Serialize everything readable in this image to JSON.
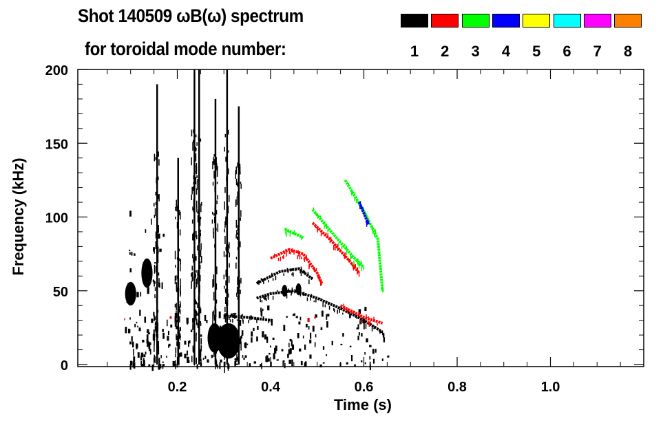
{
  "chart_data": {
    "type": "heatmap",
    "title_line1": "Shot 140509 ωB(ω) spectrum",
    "title_line2": "for toroidal mode number:",
    "xlabel": "Time (s)",
    "ylabel": "Frequency (kHz)",
    "xlim": [
      0,
      1.2
    ],
    "ylim": [
      0,
      200
    ],
    "xticks": [
      0.2,
      0.4,
      0.6,
      0.8,
      1.0
    ],
    "xtick_labels": [
      "0.2",
      "0.4",
      "0.6",
      "0.8",
      "1.0"
    ],
    "yticks": [
      0,
      50,
      100,
      150,
      200
    ],
    "ytick_labels": [
      "0",
      "50",
      "100",
      "150",
      "200"
    ],
    "legend": {
      "placement": "top-right",
      "modes": [
        {
          "n": "1",
          "color": "#000000"
        },
        {
          "n": "2",
          "color": "#ff0000"
        },
        {
          "n": "3",
          "color": "#00ff00"
        },
        {
          "n": "4",
          "color": "#0000ff"
        },
        {
          "n": "5",
          "color": "#ffff00"
        },
        {
          "n": "6",
          "color": "#00ffff"
        },
        {
          "n": "7",
          "color": "#ff00ff"
        },
        {
          "n": "8",
          "color": "#ff8000"
        }
      ]
    },
    "data_time_range": [
      0.05,
      0.65
    ],
    "mode_traces": [
      {
        "n": 1,
        "points": [
          [
            0.37,
            45
          ],
          [
            0.4,
            48
          ],
          [
            0.45,
            50
          ],
          [
            0.5,
            45
          ],
          [
            0.55,
            38
          ],
          [
            0.6,
            30
          ],
          [
            0.64,
            22
          ]
        ]
      },
      {
        "n": 1,
        "points": [
          [
            0.37,
            55
          ],
          [
            0.42,
            63
          ],
          [
            0.46,
            65
          ],
          [
            0.49,
            58
          ]
        ]
      },
      {
        "n": 1,
        "points": [
          [
            0.3,
            33
          ],
          [
            0.35,
            32
          ],
          [
            0.4,
            30
          ]
        ]
      },
      {
        "n": 2,
        "points": [
          [
            0.4,
            72
          ],
          [
            0.44,
            78
          ],
          [
            0.47,
            75
          ],
          [
            0.5,
            62
          ],
          [
            0.51,
            55
          ]
        ]
      },
      {
        "n": 2,
        "points": [
          [
            0.49,
            96
          ],
          [
            0.53,
            84
          ],
          [
            0.57,
            70
          ],
          [
            0.59,
            62
          ]
        ]
      },
      {
        "n": 2,
        "points": [
          [
            0.55,
            40
          ],
          [
            0.6,
            32
          ],
          [
            0.64,
            28
          ]
        ]
      },
      {
        "n": 3,
        "points": [
          [
            0.43,
            92
          ],
          [
            0.47,
            86
          ]
        ]
      },
      {
        "n": 3,
        "points": [
          [
            0.49,
            105
          ],
          [
            0.53,
            90
          ],
          [
            0.58,
            72
          ],
          [
            0.6,
            66
          ]
        ]
      },
      {
        "n": 3,
        "points": [
          [
            0.56,
            125
          ],
          [
            0.6,
            104
          ],
          [
            0.63,
            85
          ],
          [
            0.64,
            50
          ]
        ]
      },
      {
        "n": 4,
        "points": [
          [
            0.59,
            110
          ],
          [
            0.61,
            95
          ]
        ]
      }
    ],
    "blobs": [
      {
        "n": 1,
        "t": 0.1,
        "f": 48,
        "dt": 0.012,
        "df": 8
      },
      {
        "n": 1,
        "t": 0.135,
        "f": 62,
        "dt": 0.012,
        "df": 10
      },
      {
        "n": 1,
        "t": 0.31,
        "f": 16,
        "dt": 0.025,
        "df": 12
      },
      {
        "n": 1,
        "t": 0.28,
        "f": 18,
        "dt": 0.015,
        "df": 10
      },
      {
        "n": 1,
        "t": 0.43,
        "f": 50,
        "dt": 0.006,
        "df": 4
      },
      {
        "n": 1,
        "t": 0.46,
        "f": 51,
        "dt": 0.006,
        "df": 4
      }
    ],
    "broadband": [
      {
        "n": 1,
        "t": [
          0.08,
          0.65
        ],
        "f": [
          0,
          40
        ],
        "density": 0.55
      },
      {
        "n": 1,
        "t": [
          0.09,
          0.17
        ],
        "f": [
          0,
          105
        ],
        "density": 0.35
      }
    ],
    "vertical_bursts": [
      {
        "n": 1,
        "t": 0.235,
        "f": [
          0,
          200
        ]
      },
      {
        "n": 1,
        "t": 0.245,
        "f": [
          0,
          200
        ]
      },
      {
        "n": 1,
        "t": 0.28,
        "f": [
          0,
          180
        ]
      },
      {
        "n": 1,
        "t": 0.305,
        "f": [
          0,
          200
        ]
      },
      {
        "n": 1,
        "t": 0.33,
        "f": [
          0,
          175
        ]
      },
      {
        "n": 1,
        "t": 0.2,
        "f": [
          0,
          140
        ]
      },
      {
        "n": 1,
        "t": 0.155,
        "f": [
          0,
          190
        ]
      }
    ]
  }
}
